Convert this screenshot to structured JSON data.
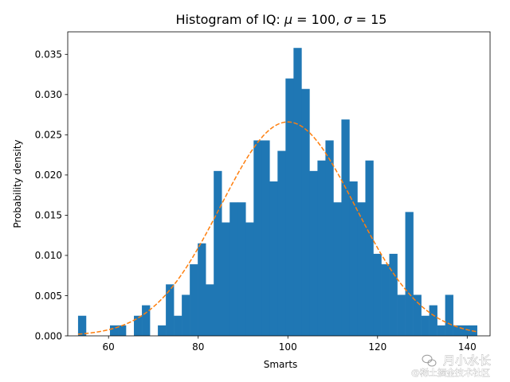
{
  "chart_data": {
    "type": "bar",
    "title_prefix": "Histogram of IQ: ",
    "title_mu": "μ",
    "title_eq1": " = 100, ",
    "title_sigma": "σ",
    "title_eq2": " = 15",
    "xlabel": "Smarts",
    "ylabel": "Probability density",
    "xlim": [
      50.9,
      145.1
    ],
    "ylim": [
      0,
      0.0378
    ],
    "xticks": [
      "60",
      "80",
      "100",
      "120",
      "140"
    ],
    "yticks": [
      "0.000",
      "0.005",
      "0.010",
      "0.015",
      "0.020",
      "0.025",
      "0.030",
      "0.035"
    ],
    "grid": false,
    "bins": {
      "start": 53.2,
      "width": 1.78,
      "density": [
        0.0025,
        0.0,
        0.0,
        0.0,
        0.0013,
        0.0013,
        0.0,
        0.0025,
        0.0038,
        0.0,
        0.0013,
        0.0064,
        0.0025,
        0.0051,
        0.0089,
        0.0115,
        0.0064,
        0.0205,
        0.0141,
        0.0166,
        0.0166,
        0.0141,
        0.0243,
        0.0243,
        0.0192,
        0.023,
        0.032,
        0.0358,
        0.0307,
        0.0205,
        0.0218,
        0.0243,
        0.0166,
        0.0269,
        0.0192,
        0.0166,
        0.0218,
        0.0102,
        0.0089,
        0.0102,
        0.0051,
        0.0154,
        0.0051,
        0.0025,
        0.0038,
        0.0013,
        0.0051,
        0.0013,
        0.0013,
        0.0013
      ],
      "color": "#1f77b4"
    },
    "curve": {
      "mu": 100,
      "sigma": 15,
      "style": "dashed",
      "color": "#ff7f0e"
    }
  },
  "watermark": {
    "line1": "月小水长",
    "line2": "@稀土掘金技术社区"
  }
}
